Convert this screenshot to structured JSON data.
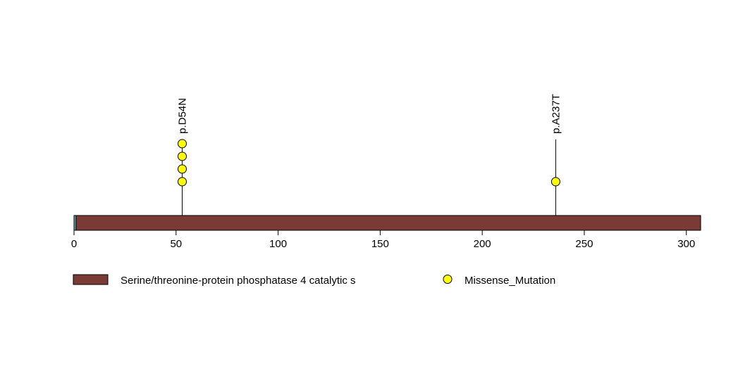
{
  "chart_data": {
    "type": "lollipop",
    "protein_length": 307,
    "x_axis": {
      "range": [
        0,
        307
      ],
      "ticks": [
        0,
        50,
        100,
        150,
        200,
        250,
        300
      ]
    },
    "domains": [
      {
        "name": "Serine/threonine-protein phosphatase 4 catalytic s",
        "start": 1,
        "end": 307,
        "color": "#7A3A36"
      }
    ],
    "mutations": [
      {
        "label": "p.D54N",
        "position": 53,
        "count": 4,
        "type": "Missense_Mutation"
      },
      {
        "label": "p.A237T",
        "position": 236,
        "count": 1,
        "type": "Missense_Mutation"
      }
    ],
    "legend": [
      {
        "kind": "domain",
        "label": "Serine/threonine-protein phosphatase 4 catalytic s",
        "color": "#7A3A36"
      },
      {
        "kind": "mutation",
        "label": "Missense_Mutation",
        "color": "#FFFF00"
      }
    ],
    "colors": {
      "domain": "#7A3A36",
      "missense": "#FFFF00",
      "backbone_start": "#5EA1A8",
      "line": "#000000"
    }
  }
}
